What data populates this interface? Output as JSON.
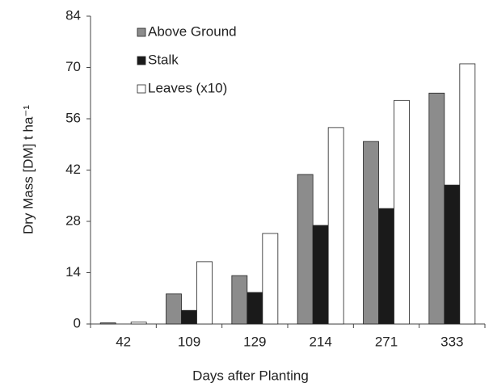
{
  "chart_data": {
    "type": "bar",
    "x_label": "Days after Planting",
    "y_label": "Dry Mass [DM] t ha⁻¹",
    "categories": [
      "42",
      "109",
      "129",
      "214",
      "271",
      "333"
    ],
    "series": [
      {
        "name": "Above Ground",
        "color": "#8c8c8c",
        "values": [
          0.3,
          8.2,
          13.2,
          40.8,
          49.8,
          63
        ]
      },
      {
        "name": "Stalk",
        "color": "#1a1a1a",
        "values": [
          0,
          3.7,
          8.6,
          26.9,
          31.5,
          37.9
        ]
      },
      {
        "name": "Leaves (x10)",
        "color": "#ffffff",
        "values": [
          0.5,
          17,
          24.7,
          53.6,
          61,
          71
        ]
      }
    ],
    "ylim": [
      0,
      84
    ],
    "yticks": [
      0,
      14,
      28,
      42,
      56,
      70,
      84
    ],
    "grid": false
  }
}
